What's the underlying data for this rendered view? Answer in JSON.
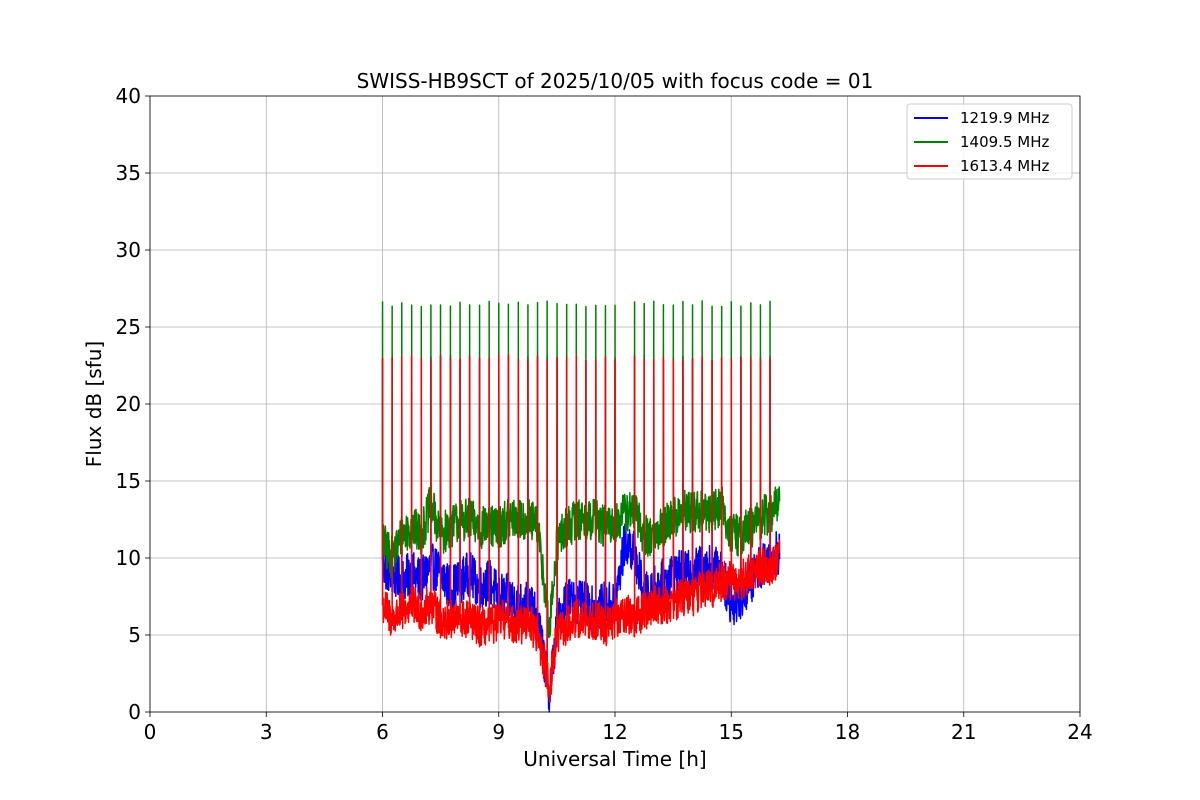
{
  "chart_data": {
    "type": "line",
    "title": "SWISS-HB9SCT of 2025/10/05 with focus code = 01",
    "xlabel": "Universal Time [h]",
    "ylabel": "Flux dB [sfu]",
    "xlim": [
      0,
      24
    ],
    "ylim": [
      0,
      40
    ],
    "xticks": [
      0,
      3,
      6,
      9,
      12,
      15,
      18,
      21,
      24
    ],
    "yticks": [
      0,
      5,
      10,
      15,
      20,
      25,
      30,
      35,
      40
    ],
    "grid": true,
    "legend_position": "top-right",
    "calibration_spikes_h": [
      6.0,
      6.25,
      6.5,
      6.75,
      7.0,
      7.25,
      7.5,
      7.75,
      8.0,
      8.25,
      8.5,
      8.75,
      9.0,
      9.25,
      9.5,
      9.75,
      10.0,
      10.25,
      10.5,
      10.75,
      11.0,
      11.25,
      11.5,
      11.75,
      12.0,
      12.5,
      12.75,
      13.0,
      13.25,
      13.5,
      13.75,
      14.0,
      14.25,
      14.5,
      14.75,
      15.0,
      15.25,
      15.5,
      15.75,
      16.0
    ],
    "series": [
      {
        "name": "1219.9 MHz",
        "color": "#0000ff",
        "spike_peak": 23.0,
        "x": [
          6.0,
          6.25,
          6.5,
          6.75,
          7.0,
          7.25,
          7.5,
          7.75,
          8.0,
          8.25,
          8.5,
          8.75,
          9.0,
          9.25,
          9.5,
          9.75,
          10.0,
          10.2,
          10.3,
          10.5,
          10.75,
          11.0,
          11.25,
          11.5,
          11.75,
          12.0,
          12.25,
          12.5,
          12.75,
          13.0,
          13.25,
          13.5,
          13.75,
          14.0,
          14.25,
          14.5,
          14.75,
          15.0,
          15.25,
          15.5,
          15.75,
          16.0,
          16.25
        ],
        "y": [
          9.5,
          9.0,
          8.5,
          9.0,
          8.5,
          9.5,
          9.0,
          8.0,
          8.5,
          9.0,
          8.0,
          8.5,
          7.5,
          7.5,
          7.0,
          7.0,
          6.0,
          3.0,
          1.0,
          5.5,
          7.5,
          7.0,
          7.0,
          6.5,
          7.0,
          7.0,
          11.0,
          10.5,
          7.5,
          8.0,
          8.5,
          9.0,
          9.0,
          9.0,
          9.5,
          9.5,
          9.0,
          7.0,
          7.5,
          8.5,
          9.5,
          10.0,
          10.5
        ],
        "noise": 1.5
      },
      {
        "name": "1409.5 MHz",
        "color": "#008000",
        "spike_peak": 26.5,
        "x": [
          6.0,
          6.25,
          6.5,
          6.75,
          7.0,
          7.25,
          7.5,
          7.75,
          8.0,
          8.25,
          8.5,
          8.75,
          9.0,
          9.25,
          9.5,
          9.75,
          10.0,
          10.2,
          10.3,
          10.5,
          10.75,
          11.0,
          11.25,
          11.5,
          11.75,
          12.0,
          12.25,
          12.5,
          12.75,
          13.0,
          13.25,
          13.5,
          13.75,
          14.0,
          14.25,
          14.5,
          14.75,
          15.0,
          15.25,
          15.5,
          15.75,
          16.0,
          16.25
        ],
        "y": [
          11.0,
          10.0,
          11.5,
          12.0,
          11.5,
          13.5,
          11.5,
          12.0,
          12.5,
          12.5,
          12.0,
          12.0,
          12.0,
          12.5,
          12.5,
          12.5,
          12.0,
          8.0,
          5.0,
          11.0,
          12.0,
          12.5,
          12.5,
          12.5,
          12.0,
          12.0,
          13.0,
          13.0,
          11.5,
          11.5,
          12.0,
          12.5,
          13.0,
          13.0,
          13.0,
          13.0,
          13.5,
          11.5,
          11.5,
          12.0,
          12.5,
          13.0,
          13.5
        ],
        "noise": 1.4
      },
      {
        "name": "1613.4 MHz",
        "color": "#ff0000",
        "spike_peak": 23.0,
        "x": [
          6.0,
          6.25,
          6.5,
          6.75,
          7.0,
          7.25,
          7.5,
          7.75,
          8.0,
          8.25,
          8.5,
          8.75,
          9.0,
          9.25,
          9.5,
          9.75,
          10.0,
          10.2,
          10.3,
          10.5,
          10.75,
          11.0,
          11.25,
          11.5,
          11.75,
          12.0,
          12.25,
          12.5,
          12.75,
          13.0,
          13.25,
          13.5,
          13.75,
          14.0,
          14.25,
          14.5,
          14.75,
          15.0,
          15.25,
          15.5,
          15.75,
          16.0,
          16.25
        ],
        "y": [
          7.0,
          6.0,
          6.5,
          7.0,
          6.5,
          7.0,
          6.0,
          6.0,
          6.0,
          6.0,
          5.5,
          5.5,
          6.0,
          6.0,
          5.5,
          6.0,
          5.0,
          3.0,
          1.5,
          5.0,
          5.5,
          6.0,
          6.0,
          6.0,
          5.5,
          6.0,
          6.5,
          6.0,
          6.5,
          7.0,
          7.0,
          7.0,
          7.5,
          7.5,
          8.0,
          8.0,
          8.5,
          8.5,
          8.5,
          9.0,
          9.5,
          9.5,
          10.0
        ],
        "noise": 1.3
      }
    ]
  }
}
